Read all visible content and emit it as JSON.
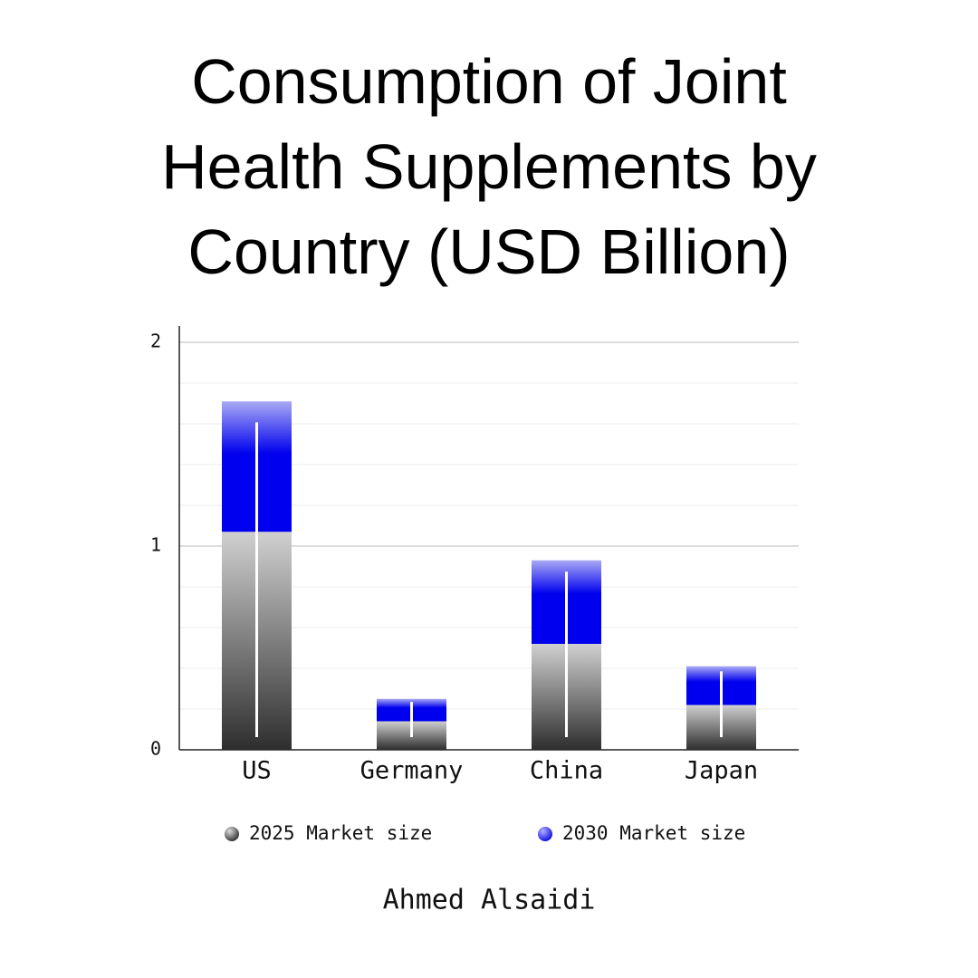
{
  "chart_data": {
    "type": "bar",
    "stacked": true,
    "title_lines": [
      "Consumption of Joint",
      "Health Supplements by",
      "Country (USD Billion)"
    ],
    "categories": [
      "US",
      "Germany",
      "China",
      "Japan"
    ],
    "series": [
      {
        "name": "2025 Market size",
        "color": "#333333",
        "values": [
          1.07,
          0.14,
          0.52,
          0.22
        ]
      },
      {
        "name": "2030 Market size",
        "color": "#0000ee",
        "values": [
          0.64,
          0.11,
          0.41,
          0.19
        ]
      }
    ],
    "ylim": [
      0,
      2.08
    ],
    "yticks": [
      0,
      1,
      2
    ],
    "minor_yticks": [
      0.2,
      0.4,
      0.6,
      0.8,
      1.2,
      1.4,
      1.6,
      1.8
    ],
    "grid": true,
    "author": "Ahmed Alsaidi"
  }
}
